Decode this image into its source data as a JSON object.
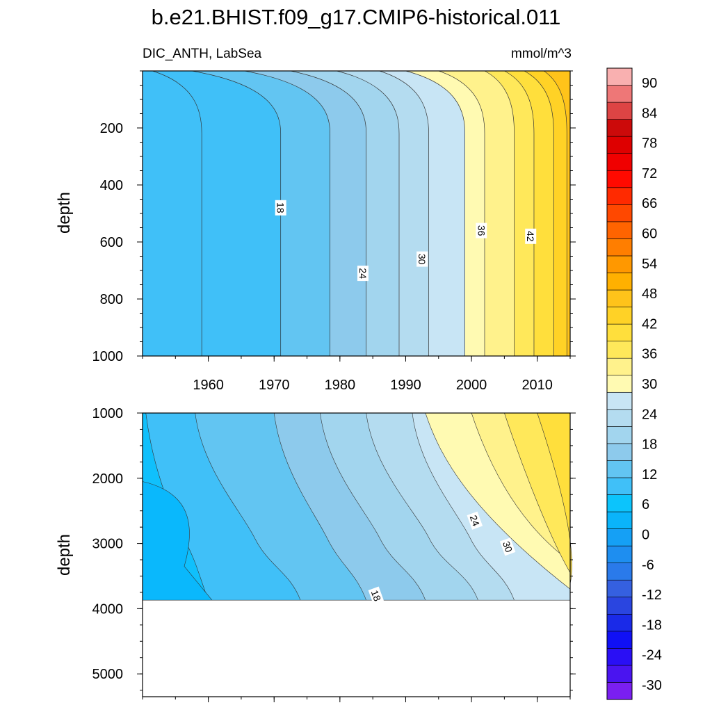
{
  "title": "b.e21.BHIST.f09_g17.CMIP6-historical.011",
  "variable_label": "DIC_ANTH, LabSea",
  "units_label": "mmol/m^3",
  "chart_data": [
    {
      "type": "heatmap",
      "panel": "upper",
      "ylabel": "depth",
      "xlabel": "",
      "xlim": [
        1950,
        2015
      ],
      "ylim": [
        1000,
        0
      ],
      "x_ticks": [
        1960,
        1970,
        1980,
        1990,
        2000,
        2010
      ],
      "y_ticks": [
        200,
        400,
        600,
        800,
        1000
      ],
      "contour_levels": [
        8,
        10,
        12,
        14,
        16,
        18,
        20,
        22,
        24,
        26,
        28,
        30,
        32,
        34,
        36,
        38,
        40,
        42,
        44,
        46
      ],
      "contour_years_top": [
        1951.5,
        1957.5,
        1965.5,
        1972.5,
        1979.5,
        1986,
        1990,
        1995,
        2002,
        2005,
        2008,
        2011,
        2013,
        2014.5
      ],
      "contour_years_bottom": [
        1959,
        1971,
        1978.5,
        1984,
        1989,
        1993.5,
        1999,
        2002,
        2006.5,
        2009.5,
        2012.5,
        2014.5
      ],
      "contour_labels": [
        {
          "text": "18",
          "x": 1971,
          "y": 480
        },
        {
          "text": "24",
          "x": 1983.5,
          "y": 710
        },
        {
          "text": "30",
          "x": 1992.5,
          "y": 660
        },
        {
          "text": "36",
          "x": 2001.5,
          "y": 560
        },
        {
          "text": "42",
          "x": 2009,
          "y": 580
        }
      ]
    },
    {
      "type": "heatmap",
      "panel": "lower",
      "ylabel": "depth",
      "xlabel": "",
      "xlim": [
        1950,
        2015
      ],
      "ylim": [
        5350,
        1000
      ],
      "x_ticks": [
        1960,
        1970,
        1980,
        1990,
        2000,
        2010
      ],
      "y_ticks": [
        1000,
        2000,
        3000,
        4000,
        5000
      ],
      "data_bottom_depth": 3870,
      "contour_labels": [
        {
          "text": "24",
          "x": 2000.5,
          "y": 2650
        },
        {
          "text": "30",
          "x": 2005.5,
          "y": 3050
        },
        {
          "text": "18",
          "x": 1985.5,
          "y": 3800
        }
      ]
    }
  ],
  "colorbar": {
    "labels": [
      "90",
      "84",
      "78",
      "72",
      "66",
      "60",
      "54",
      "48",
      "42",
      "36",
      "30",
      "24",
      "18",
      "12",
      "6",
      "0",
      "-6",
      "-12",
      "-18",
      "-24",
      "-30"
    ],
    "colors": [
      "#7a1ff0",
      "#4a14f0",
      "#2a0ff5",
      "#1010f5",
      "#1a2ae8",
      "#2a45e0",
      "#3560e0",
      "#2a7aea",
      "#1e8ef0",
      "#15a0f5",
      "#0ab4fa",
      "#0cc4fc",
      "#40c0f8",
      "#62c5f2",
      "#8dcaec",
      "#a2d5ee",
      "#b4dcf0",
      "#c8e5f5",
      "#fffab2",
      "#fff28c",
      "#ffe85a",
      "#ffdf3c",
      "#ffd226",
      "#ffc31a",
      "#ffb000",
      "#ff9800",
      "#ff7e00",
      "#ff6400",
      "#ff4800",
      "#ff2a00",
      "#ff0a00",
      "#f00000",
      "#de0000",
      "#cc0a0a",
      "#dd4444",
      "#ee7777",
      "#f9b0b0"
    ]
  }
}
